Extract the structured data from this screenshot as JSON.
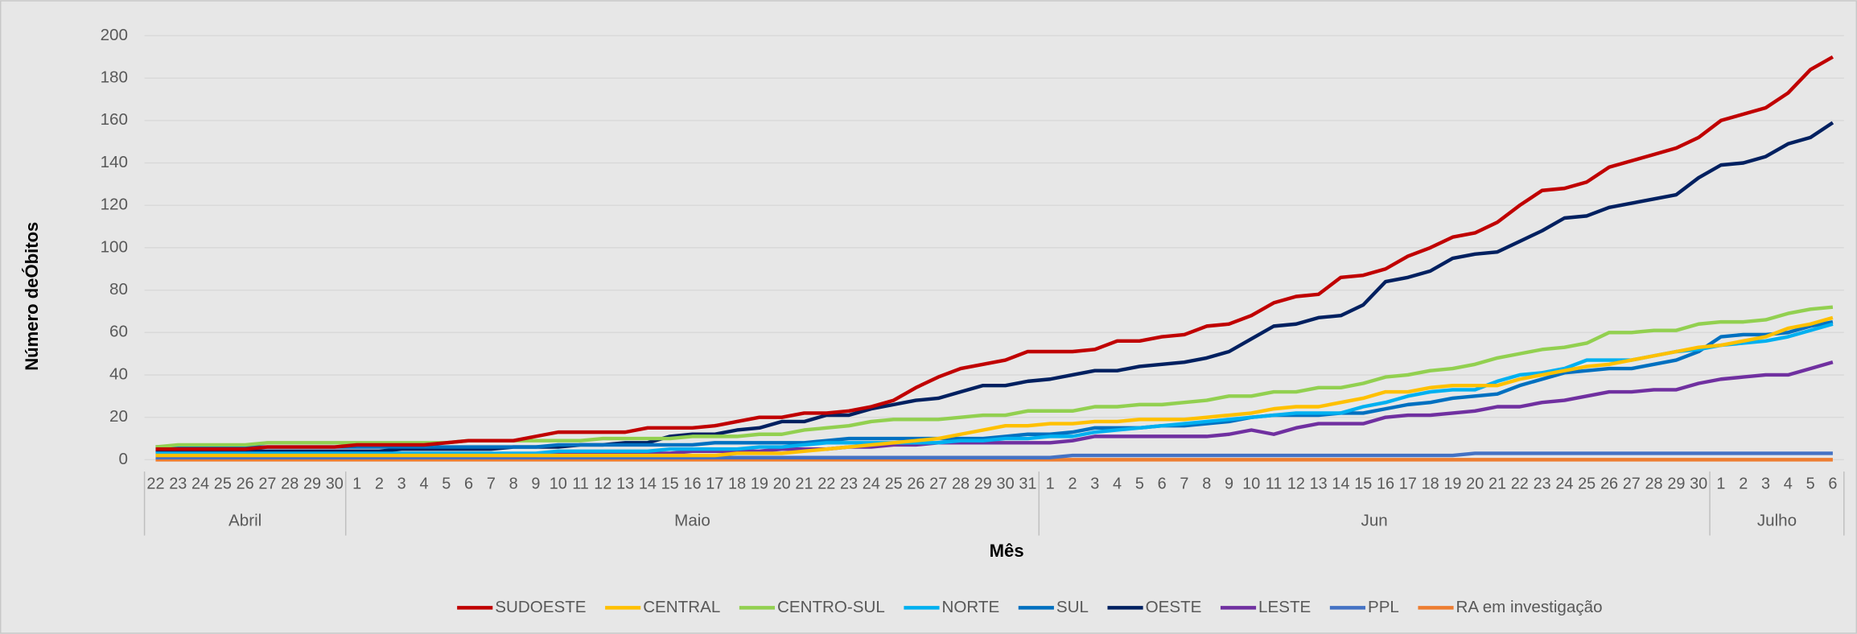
{
  "chart_data": {
    "type": "line",
    "y_label": "Número deÓbitos",
    "x_label": "Mês",
    "months": [
      "Abril",
      "Maio",
      "Jun",
      "Julho"
    ],
    "categories": [
      22,
      23,
      24,
      25,
      26,
      27,
      28,
      29,
      30,
      1,
      2,
      3,
      4,
      5,
      6,
      7,
      8,
      9,
      10,
      11,
      12,
      13,
      14,
      15,
      16,
      17,
      18,
      19,
      20,
      21,
      22,
      23,
      24,
      25,
      26,
      27,
      28,
      29,
      30,
      31,
      1,
      2,
      3,
      4,
      5,
      6,
      7,
      8,
      9,
      10,
      11,
      12,
      13,
      14,
      15,
      16,
      17,
      18,
      19,
      20,
      21,
      22,
      23,
      24,
      25,
      26,
      27,
      28,
      29,
      30,
      1,
      2,
      3,
      4,
      5,
      6
    ],
    "ylim": [
      0,
      200
    ],
    "yticks": [
      0,
      20,
      40,
      60,
      80,
      100,
      120,
      140,
      160,
      180,
      200
    ],
    "grid": true,
    "series": [
      {
        "name": "SUDOESTE",
        "color": "#c00000",
        "values": [
          5,
          5,
          5,
          5,
          5,
          6,
          6,
          6,
          6,
          7,
          7,
          7,
          7,
          8,
          9,
          9,
          9,
          11,
          13,
          13,
          13,
          13,
          15,
          15,
          15,
          16,
          18,
          20,
          20,
          22,
          22,
          23,
          25,
          28,
          34,
          39,
          43,
          45,
          47,
          51,
          51,
          51,
          52,
          56,
          56,
          58,
          59,
          63,
          64,
          68,
          74,
          77,
          78,
          86,
          87,
          90,
          96,
          100,
          105,
          107,
          112,
          120,
          127,
          128,
          131,
          138,
          141,
          144,
          147,
          152,
          160,
          163,
          166,
          173,
          184,
          190
        ]
      },
      {
        "name": "CENTRAL",
        "color": "#ffc000",
        "values": [
          2,
          2,
          2,
          2,
          2,
          2,
          2,
          2,
          2,
          2,
          2,
          2,
          2,
          2,
          2,
          2,
          2,
          2,
          2,
          2,
          2,
          2,
          2,
          2,
          2,
          2,
          3,
          3,
          3,
          4,
          5,
          6,
          7,
          8,
          9,
          10,
          12,
          14,
          16,
          16,
          17,
          17,
          18,
          18,
          19,
          19,
          19,
          20,
          21,
          22,
          24,
          25,
          25,
          27,
          29,
          32,
          32,
          34,
          35,
          35,
          35,
          38,
          40,
          42,
          44,
          45,
          47,
          49,
          51,
          53,
          54,
          56,
          58,
          62,
          64,
          67
        ]
      },
      {
        "name": "CENTRO-SUL",
        "color": "#92d050",
        "values": [
          6,
          7,
          7,
          7,
          7,
          8,
          8,
          8,
          8,
          8,
          8,
          8,
          8,
          8,
          9,
          9,
          9,
          9,
          9,
          9,
          10,
          10,
          10,
          10,
          11,
          11,
          11,
          12,
          12,
          14,
          15,
          16,
          18,
          19,
          19,
          19,
          20,
          21,
          21,
          23,
          23,
          23,
          25,
          25,
          26,
          26,
          27,
          28,
          30,
          30,
          32,
          32,
          34,
          34,
          36,
          39,
          40,
          42,
          43,
          45,
          48,
          50,
          52,
          53,
          55,
          60,
          60,
          61,
          61,
          64,
          65,
          65,
          66,
          69,
          71,
          72
        ]
      },
      {
        "name": "NORTE",
        "color": "#00b0f0",
        "values": [
          3,
          3,
          3,
          3,
          3,
          3,
          3,
          3,
          3,
          3,
          3,
          3,
          3,
          3,
          3,
          3,
          3,
          3,
          4,
          4,
          4,
          4,
          4,
          5,
          5,
          5,
          5,
          6,
          6,
          7,
          8,
          8,
          8,
          8,
          8,
          8,
          9,
          9,
          10,
          10,
          11,
          11,
          13,
          14,
          15,
          16,
          17,
          18,
          19,
          20,
          21,
          22,
          22,
          22,
          25,
          27,
          30,
          32,
          33,
          33,
          37,
          40,
          41,
          43,
          47,
          47,
          47,
          49,
          51,
          52,
          54,
          55,
          56,
          58,
          61,
          64
        ]
      },
      {
        "name": "SUL",
        "color": "#0070c0",
        "values": [
          6,
          6,
          6,
          6,
          6,
          6,
          6,
          6,
          6,
          6,
          6,
          6,
          6,
          6,
          6,
          6,
          6,
          6,
          7,
          7,
          7,
          7,
          7,
          7,
          7,
          8,
          8,
          8,
          8,
          8,
          9,
          10,
          10,
          10,
          10,
          10,
          10,
          10,
          11,
          12,
          12,
          13,
          15,
          15,
          15,
          16,
          16,
          17,
          18,
          20,
          21,
          21,
          21,
          22,
          22,
          24,
          26,
          27,
          29,
          30,
          31,
          35,
          38,
          41,
          42,
          43,
          43,
          45,
          47,
          51,
          58,
          59,
          59,
          60,
          63,
          65
        ]
      },
      {
        "name": "OESTE",
        "color": "#002060",
        "values": [
          4,
          4,
          4,
          4,
          4,
          4,
          4,
          4,
          4,
          4,
          4,
          5,
          5,
          5,
          5,
          5,
          6,
          6,
          6,
          7,
          7,
          8,
          8,
          11,
          12,
          12,
          14,
          15,
          18,
          18,
          21,
          21,
          24,
          26,
          28,
          29,
          32,
          35,
          35,
          37,
          38,
          40,
          42,
          42,
          44,
          45,
          46,
          48,
          51,
          57,
          63,
          64,
          67,
          68,
          73,
          84,
          86,
          89,
          95,
          97,
          98,
          103,
          108,
          114,
          115,
          119,
          121,
          123,
          125,
          133,
          139,
          140,
          143,
          149,
          152,
          159
        ]
      },
      {
        "name": "LESTE",
        "color": "#7030a0",
        "values": [
          2,
          2,
          2,
          2,
          2,
          2,
          2,
          2,
          2,
          2,
          2,
          2,
          2,
          2,
          2,
          2,
          2,
          2,
          3,
          3,
          3,
          3,
          3,
          3,
          4,
          4,
          4,
          4,
          5,
          5,
          5,
          6,
          6,
          7,
          7,
          8,
          8,
          8,
          8,
          8,
          8,
          9,
          11,
          11,
          11,
          11,
          11,
          11,
          12,
          14,
          12,
          15,
          17,
          17,
          17,
          20,
          21,
          21,
          22,
          23,
          25,
          25,
          27,
          28,
          30,
          32,
          32,
          33,
          33,
          36,
          38,
          39,
          40,
          40,
          43,
          46
        ]
      },
      {
        "name": "PPL",
        "color": "#4472c4",
        "values": [
          1,
          1,
          1,
          1,
          1,
          1,
          1,
          1,
          1,
          1,
          1,
          1,
          1,
          1,
          1,
          1,
          1,
          1,
          1,
          1,
          1,
          1,
          1,
          1,
          1,
          1,
          1,
          1,
          1,
          1,
          1,
          1,
          1,
          1,
          1,
          1,
          1,
          1,
          1,
          1,
          1,
          2,
          2,
          2,
          2,
          2,
          2,
          2,
          2,
          2,
          2,
          2,
          2,
          2,
          2,
          2,
          2,
          2,
          2,
          3,
          3,
          3,
          3,
          3,
          3,
          3,
          3,
          3,
          3,
          3,
          3,
          3,
          3,
          3,
          3,
          3
        ]
      },
      {
        "name": "RA em investigação",
        "color": "#ed7d31",
        "values": [
          0,
          0,
          0,
          0,
          0,
          0,
          0,
          0,
          0,
          0,
          0,
          0,
          0,
          0,
          0,
          0,
          0,
          0,
          0,
          0,
          0,
          0,
          0,
          0,
          0,
          0,
          0,
          0,
          0,
          0,
          0,
          0,
          0,
          0,
          0,
          0,
          0,
          0,
          0,
          0,
          0,
          0,
          0,
          0,
          0,
          0,
          0,
          0,
          0,
          0,
          0,
          0,
          0,
          0,
          0,
          0,
          0,
          0,
          0,
          0,
          0,
          0,
          0,
          0,
          0,
          0,
          0,
          0,
          0,
          0,
          0,
          0,
          0,
          0,
          0,
          0
        ]
      }
    ]
  }
}
